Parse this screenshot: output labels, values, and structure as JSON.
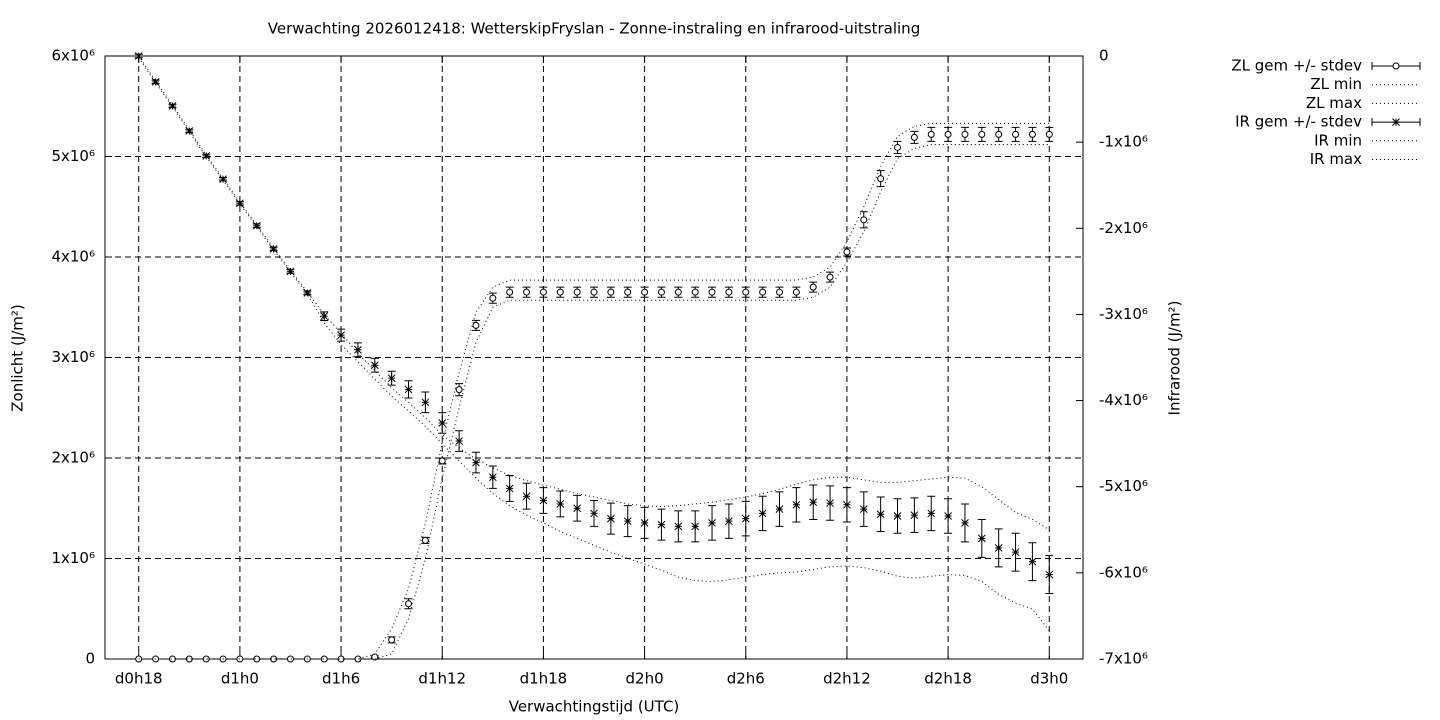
{
  "chart_data": {
    "type": "line",
    "title": "Verwachting 2026012418: WetterskipFryslan - Zonne-instraling en infrarood-uitstraling",
    "xlabel": "Verwachtingstijd (UTC)",
    "ylabel": "Zonlicht (J/m²)",
    "y2label": "Infrarood (J/m²)",
    "x": [
      18,
      19,
      20,
      21,
      22,
      23,
      24,
      25,
      26,
      27,
      28,
      29,
      30,
      31,
      32,
      33,
      34,
      35,
      36,
      37,
      38,
      39,
      40,
      41,
      42,
      43,
      44,
      45,
      46,
      47,
      48,
      49,
      50,
      51,
      52,
      53,
      54,
      55,
      56,
      57,
      58,
      59,
      60,
      61,
      62,
      63,
      64,
      65,
      66,
      67,
      68,
      69,
      70,
      71,
      72
    ],
    "xlim": [
      16,
      74
    ],
    "xticks": [
      {
        "value": 18,
        "label": "d0h18"
      },
      {
        "value": 24,
        "label": "d1h0"
      },
      {
        "value": 30,
        "label": "d1h6"
      },
      {
        "value": 36,
        "label": "d1h12"
      },
      {
        "value": 42,
        "label": "d1h18"
      },
      {
        "value": 48,
        "label": "d2h0"
      },
      {
        "value": 54,
        "label": "d2h6"
      },
      {
        "value": 60,
        "label": "d2h12"
      },
      {
        "value": 66,
        "label": "d2h18"
      },
      {
        "value": 72,
        "label": "d3h0"
      }
    ],
    "ylim": [
      0,
      6000000.0
    ],
    "yticks": [
      0,
      {
        "value": 1000000.0,
        "label": "1x10⁶"
      },
      {
        "value": 2000000.0,
        "label": "2x10⁶"
      },
      {
        "value": 3000000.0,
        "label": "3x10⁶"
      },
      {
        "value": 4000000.0,
        "label": "4x10⁶"
      },
      {
        "value": 5000000.0,
        "label": "5x10⁶"
      },
      {
        "value": 6000000.0,
        "label": "6x10⁶"
      }
    ],
    "y2lim": [
      -7000000.0,
      0
    ],
    "y2ticks": [
      0,
      {
        "value": -1000000.0,
        "label": "-1x10⁶"
      },
      {
        "value": -2000000.0,
        "label": "-2x10⁶"
      },
      {
        "value": -3000000.0,
        "label": "-3x10⁶"
      },
      {
        "value": -4000000.0,
        "label": "-4x10⁶"
      },
      {
        "value": -5000000.0,
        "label": "-5x10⁶"
      },
      {
        "value": -6000000.0,
        "label": "-6x10⁶"
      },
      {
        "value": -7000000.0,
        "label": "-7x10⁶"
      }
    ],
    "grid": true,
    "legend": "outside-right",
    "series": [
      {
        "name": "ZL gem +/- stdev",
        "color": "#000000",
        "style": "errorbars",
        "marker": "circle",
        "values": [
          0,
          0,
          0,
          0,
          0,
          0,
          0,
          0,
          0,
          0,
          0,
          0,
          0,
          0,
          20000.0,
          190000.0,
          550000.0,
          1180000.0,
          1970000.0,
          2680000.0,
          3320000.0,
          3590000.0,
          3650000.0,
          3650000.0,
          3650000.0,
          3650000.0,
          3650000.0,
          3650000.0,
          3650000.0,
          3650000.0,
          3650000.0,
          3650000.0,
          3650000.0,
          3650000.0,
          3650000.0,
          3650000.0,
          3650000.0,
          3650000.0,
          3650000.0,
          3650000.0,
          3700000.0,
          3800000.0,
          4050000.0,
          4370000.0,
          4780000.0,
          5090000.0,
          5190000.0,
          5220000.0,
          5220000.0,
          5220000.0,
          5220000.0,
          5220000.0,
          5220000.0,
          5220000.0,
          5220000.0
        ],
        "errors": [
          0,
          0,
          0,
          0,
          0,
          0,
          0,
          0,
          0,
          0,
          0,
          0,
          0,
          0,
          10000.0,
          30000.0,
          50000.0,
          30000.0,
          30000.0,
          60000.0,
          50000.0,
          50000.0,
          50000.0,
          50000.0,
          50000.0,
          50000.0,
          50000.0,
          50000.0,
          50000.0,
          50000.0,
          50000.0,
          50000.0,
          50000.0,
          50000.0,
          50000.0,
          50000.0,
          50000.0,
          50000.0,
          50000.0,
          50000.0,
          50000.0,
          50000.0,
          40000.0,
          80000.0,
          80000.0,
          60000.0,
          60000.0,
          70000.0,
          70000.0,
          70000.0,
          70000.0,
          70000.0,
          70000.0,
          70000.0,
          70000.0
        ]
      },
      {
        "name": "ZL min",
        "color": "#000000",
        "style": "dotted",
        "values": [
          0,
          0,
          0,
          0,
          0,
          0,
          0,
          0,
          0,
          0,
          0,
          0,
          0,
          0,
          0,
          50000.0,
          400000.0,
          1000000.0,
          1800000.0,
          2500000.0,
          3150000.0,
          3500000.0,
          3570000.0,
          3570000.0,
          3570000.0,
          3570000.0,
          3570000.0,
          3570000.0,
          3570000.0,
          3570000.0,
          3570000.0,
          3570000.0,
          3570000.0,
          3570000.0,
          3570000.0,
          3570000.0,
          3570000.0,
          3570000.0,
          3570000.0,
          3570000.0,
          3600000.0,
          3700000.0,
          3950000.0,
          4250000.0,
          4650000.0,
          4980000.0,
          5080000.0,
          5120000.0,
          5120000.0,
          5120000.0,
          5120000.0,
          5120000.0,
          5120000.0,
          5120000.0,
          5120000.0
        ]
      },
      {
        "name": "ZL max",
        "color": "#000000",
        "style": "dotted",
        "values": [
          0,
          0,
          0,
          0,
          0,
          0,
          0,
          0,
          0,
          0,
          0,
          0,
          0,
          0,
          50000.0,
          300000.0,
          700000.0,
          1350000.0,
          2150000.0,
          2850000.0,
          3450000.0,
          3700000.0,
          3770000.0,
          3770000.0,
          3770000.0,
          3770000.0,
          3770000.0,
          3770000.0,
          3770000.0,
          3770000.0,
          3770000.0,
          3770000.0,
          3770000.0,
          3770000.0,
          3770000.0,
          3770000.0,
          3770000.0,
          3770000.0,
          3770000.0,
          3770000.0,
          3800000.0,
          3900000.0,
          4150000.0,
          4500000.0,
          4900000.0,
          5200000.0,
          5300000.0,
          5330000.0,
          5330000.0,
          5330000.0,
          5330000.0,
          5330000.0,
          5330000.0,
          5330000.0,
          5330000.0
        ]
      },
      {
        "name": "IR gem +/- stdev",
        "color": "#000000",
        "style": "errorbars",
        "marker": "star",
        "axis": "y2",
        "values": [
          0,
          -300000.0,
          -580000.0,
          -870000.0,
          -1160000.0,
          -1430000.0,
          -1710000.0,
          -1970000.0,
          -2240000.0,
          -2500000.0,
          -2750000.0,
          -3020000.0,
          -3240000.0,
          -3410000.0,
          -3590000.0,
          -3740000.0,
          -3870000.0,
          -4020000.0,
          -4260000.0,
          -4470000.0,
          -4720000.0,
          -4890000.0,
          -5020000.0,
          -5110000.0,
          -5160000.0,
          -5200000.0,
          -5250000.0,
          -5310000.0,
          -5370000.0,
          -5400000.0,
          -5420000.0,
          -5440000.0,
          -5460000.0,
          -5460000.0,
          -5420000.0,
          -5400000.0,
          -5370000.0,
          -5310000.0,
          -5260000.0,
          -5210000.0,
          -5180000.0,
          -5190000.0,
          -5210000.0,
          -5260000.0,
          -5320000.0,
          -5340000.0,
          -5330000.0,
          -5310000.0,
          -5340000.0,
          -5420000.0,
          -5600000.0,
          -5710000.0,
          -5760000.0,
          -5870000.0,
          -6020000.0
        ],
        "errors": [
          20000.0,
          20000.0,
          20000.0,
          20000.0,
          20000.0,
          20000.0,
          20000.0,
          20000.0,
          20000.0,
          20000.0,
          20000.0,
          50000.0,
          70000.0,
          80000.0,
          80000.0,
          80000.0,
          100000.0,
          120000.0,
          120000.0,
          120000.0,
          120000.0,
          130000.0,
          150000.0,
          150000.0,
          150000.0,
          150000.0,
          150000.0,
          150000.0,
          180000.0,
          180000.0,
          180000.0,
          180000.0,
          180000.0,
          180000.0,
          200000.0,
          200000.0,
          200000.0,
          200000.0,
          200000.0,
          200000.0,
          200000.0,
          200000.0,
          200000.0,
          200000.0,
          200000.0,
          200000.0,
          200000.0,
          200000.0,
          200000.0,
          220000.0,
          220000.0,
          220000.0,
          220000.0,
          220000.0,
          220000.0
        ]
      },
      {
        "name": "IR min",
        "color": "#000000",
        "style": "dotted",
        "axis": "y2",
        "values": [
          -20000.0,
          -310000.0,
          -590000.0,
          -880000.0,
          -1170000.0,
          -1440000.0,
          -1720000.0,
          -1980000.0,
          -2250000.0,
          -2510000.0,
          -2760000.0,
          -3100000.0,
          -3350000.0,
          -3550000.0,
          -3750000.0,
          -3950000.0,
          -4120000.0,
          -4300000.0,
          -4500000.0,
          -4700000.0,
          -4900000.0,
          -5080000.0,
          -5220000.0,
          -5330000.0,
          -5420000.0,
          -5520000.0,
          -5600000.0,
          -5680000.0,
          -5760000.0,
          -5830000.0,
          -5900000.0,
          -5970000.0,
          -6050000.0,
          -6090000.0,
          -6100000.0,
          -6080000.0,
          -6050000.0,
          -6020000.0,
          -6000000.0,
          -5990000.0,
          -5960000.0,
          -5930000.0,
          -5920000.0,
          -5940000.0,
          -5980000.0,
          -6040000.0,
          -6060000.0,
          -6040000.0,
          -6020000.0,
          -6030000.0,
          -6100000.0,
          -6250000.0,
          -6350000.0,
          -6420000.0,
          -6670000.0
        ]
      },
      {
        "name": "IR max",
        "color": "#000000",
        "style": "dotted",
        "axis": "y2",
        "values": [
          0,
          -290000.0,
          -570000.0,
          -860000.0,
          -1150000.0,
          -1420000.0,
          -1700000.0,
          -1960000.0,
          -2230000.0,
          -2490000.0,
          -2740000.0,
          -3000000.0,
          -3220000.0,
          -3450000.0,
          -3650000.0,
          -3850000.0,
          -4020000.0,
          -4200000.0,
          -4400000.0,
          -4550000.0,
          -4680000.0,
          -4780000.0,
          -4870000.0,
          -4930000.0,
          -4980000.0,
          -5030000.0,
          -5080000.0,
          -5120000.0,
          -5160000.0,
          -5200000.0,
          -5220000.0,
          -5230000.0,
          -5220000.0,
          -5200000.0,
          -5180000.0,
          -5150000.0,
          -5120000.0,
          -5080000.0,
          -5030000.0,
          -4970000.0,
          -4920000.0,
          -4890000.0,
          -4890000.0,
          -4920000.0,
          -4950000.0,
          -4950000.0,
          -4930000.0,
          -4910000.0,
          -4890000.0,
          -4900000.0,
          -5000000.0,
          -5150000.0,
          -5300000.0,
          -5380000.0,
          -5500000.0
        ]
      }
    ]
  }
}
